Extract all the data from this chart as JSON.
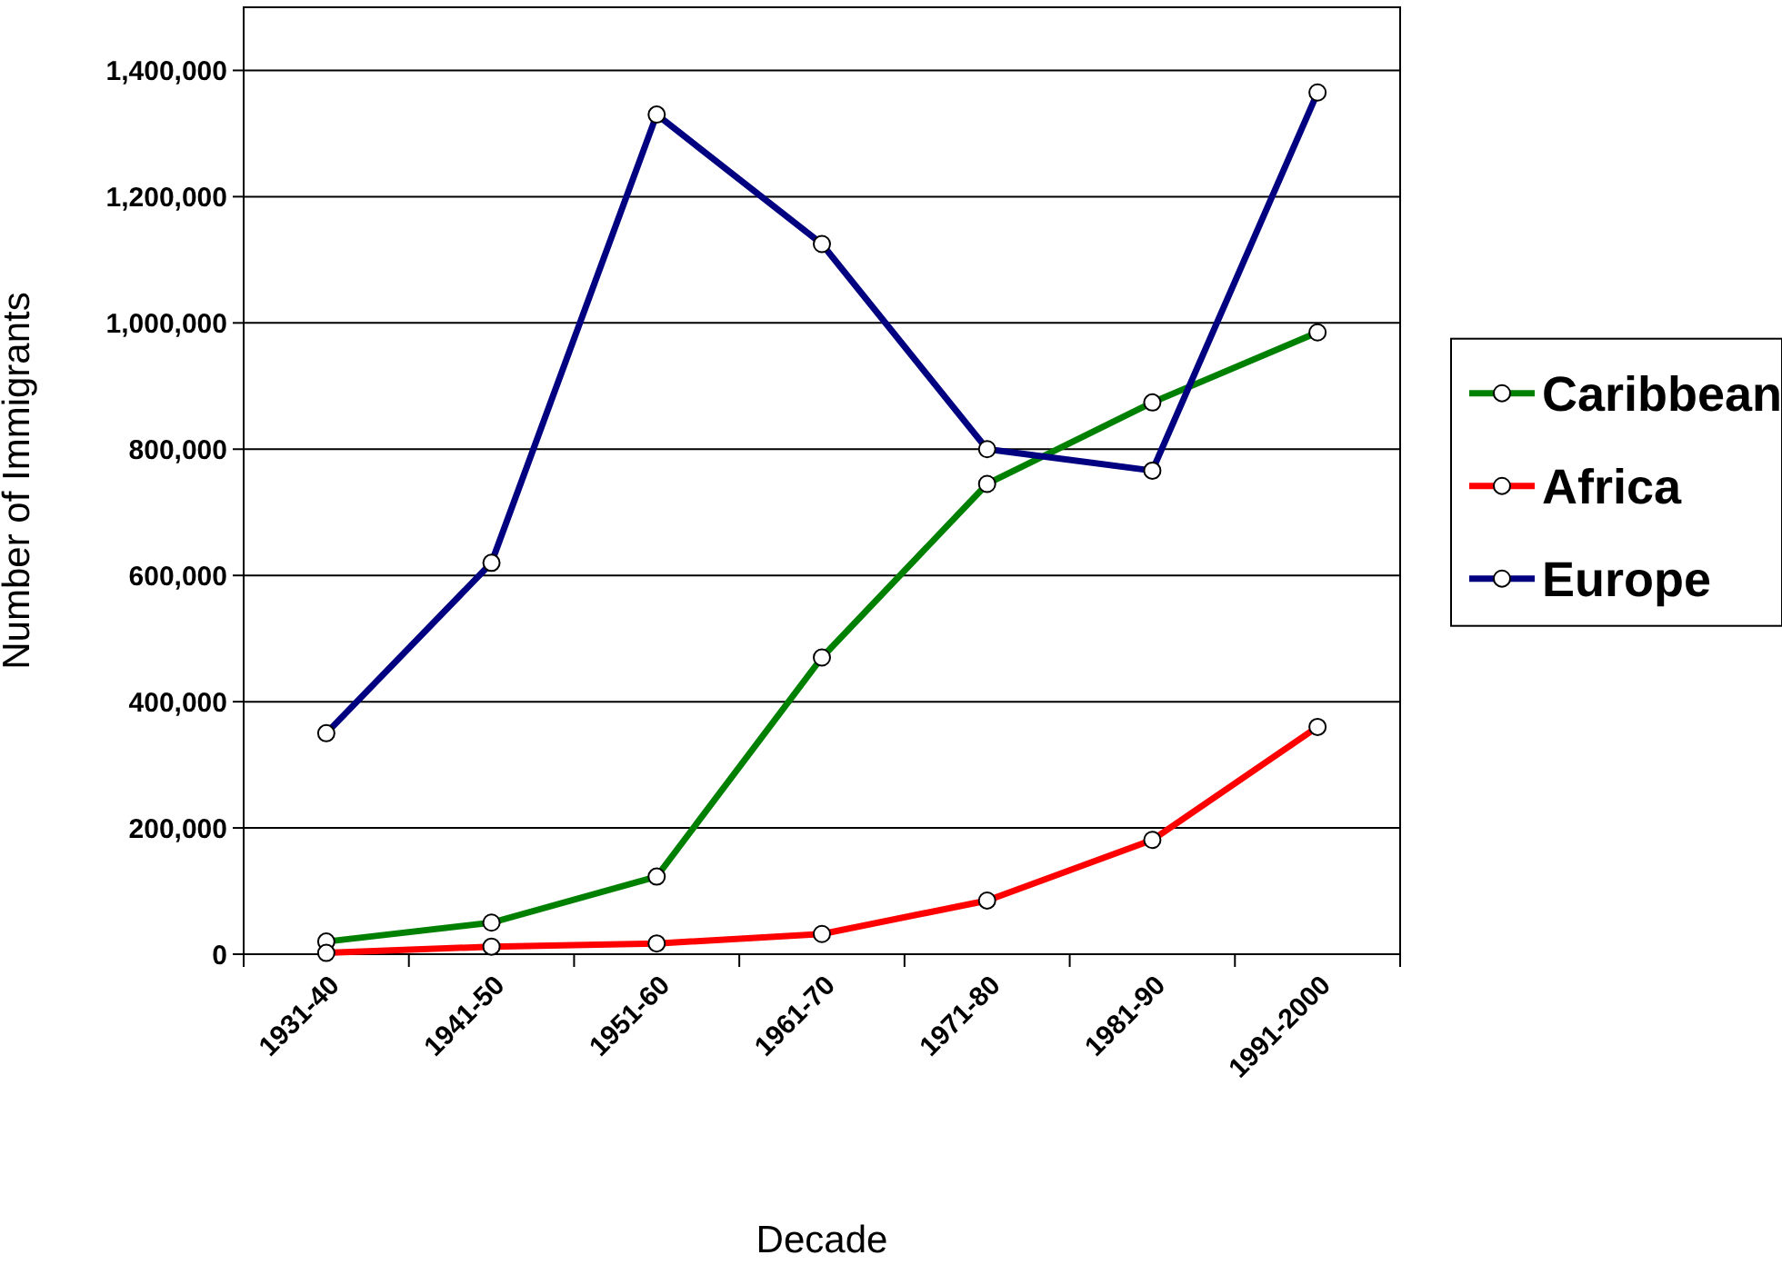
{
  "chart_data": {
    "type": "line",
    "xlabel": "Decade",
    "ylabel": "Number of Immigrants",
    "categories": [
      "1931-40",
      "1941-50",
      "1951-60",
      "1961-70",
      "1971-80",
      "1981-90",
      "1991-2000"
    ],
    "series": [
      {
        "name": "Caribbean",
        "color": "#008000",
        "values": [
          20000,
          50000,
          123000,
          470000,
          745000,
          874000,
          985000
        ]
      },
      {
        "name": "Africa",
        "color": "#ff0000",
        "values": [
          2000,
          12000,
          17000,
          32000,
          85000,
          181000,
          360000
        ]
      },
      {
        "name": "Europe",
        "color": "#000080",
        "values": [
          350000,
          620000,
          1330000,
          1125000,
          800000,
          766000,
          1365000
        ]
      }
    ],
    "ylim": [
      0,
      1500000
    ],
    "yticks": [
      {
        "value": 0,
        "label": "0"
      },
      {
        "value": 200000,
        "label": "200,000"
      },
      {
        "value": 400000,
        "label": "400,000"
      },
      {
        "value": 600000,
        "label": "600,000"
      },
      {
        "value": 800000,
        "label": "800,000"
      },
      {
        "value": 1000000,
        "label": "1,000,000"
      },
      {
        "value": 1200000,
        "label": "1,200,000"
      },
      {
        "value": 1400000,
        "label": "1,400,000"
      }
    ],
    "grid": "y",
    "legend": "right",
    "marker": "circle",
    "line_style": "solid"
  }
}
